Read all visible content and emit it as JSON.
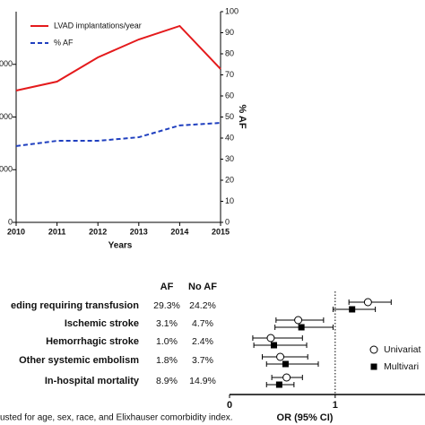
{
  "chart_data": [
    {
      "type": "line",
      "x": [
        2010,
        2011,
        2012,
        2013,
        2014,
        2015
      ],
      "xlim": [
        2010,
        2015
      ],
      "xticks": [
        2010,
        2011,
        2012,
        2013,
        2014,
        2015
      ],
      "xlabel": "Years",
      "ylim": [
        0,
        4000
      ],
      "yticks": [
        0,
        {
          "value": 1000,
          "label": "000"
        },
        {
          "value": 2000,
          "label": "000"
        },
        {
          "value": 3000,
          "label": "000"
        }
      ],
      "y2lim": [
        0,
        100
      ],
      "y2ticks": [
        0,
        10,
        20,
        30,
        40,
        50,
        60,
        70,
        80,
        90,
        100
      ],
      "y2label": "% AF",
      "series": [
        {
          "name": "LVAD implantations/year",
          "color": "#e41a1c",
          "dash": false,
          "values": [
            2502,
            2672,
            3132,
            3472,
            3728,
            2911
          ]
        },
        {
          "name": "% AF",
          "color": "#1f3fbf",
          "dash": true,
          "axis": "y2",
          "values": [
            36.2,
            38.7,
            38.7,
            40.4,
            46.0,
            47.2
          ]
        }
      ]
    },
    {
      "type": "forest",
      "categories": [
        "eding requiring transfusion",
        "Ischemic stroke",
        "Hemorrhagic stroke",
        "Other systemic embolism",
        "In-hospital mortality"
      ],
      "columns": [
        {
          "header": "AF",
          "values": [
            "29.3%",
            "3.1%",
            "1.0%",
            "1.8%",
            "8.9%"
          ]
        },
        {
          "header": "No AF",
          "values": [
            "24.2%",
            "4.7%",
            "2.4%",
            "3.7%",
            "14.9%"
          ]
        }
      ],
      "xlim": [
        0,
        1.85
      ],
      "xticks": [
        0,
        1
      ],
      "reference": 1,
      "xlabel": "OR (95% CI)",
      "series": [
        {
          "name": "Univariat",
          "marker": "circle",
          "values": [
            1.31,
            0.65,
            0.39,
            0.48,
            0.54
          ],
          "lower": [
            1.13,
            0.44,
            0.22,
            0.31,
            0.4
          ],
          "upper": [
            1.53,
            0.89,
            0.69,
            0.74,
            0.69
          ]
        },
        {
          "name": "Multivari",
          "marker": "square",
          "values": [
            1.16,
            0.68,
            0.42,
            0.53,
            0.47
          ],
          "lower": [
            0.98,
            0.43,
            0.23,
            0.35,
            0.35
          ],
          "upper": [
            1.38,
            0.98,
            0.73,
            0.84,
            0.61
          ]
        }
      ],
      "footnote": "usted for age, sex, race, and Elixhauser comorbidity index."
    }
  ]
}
